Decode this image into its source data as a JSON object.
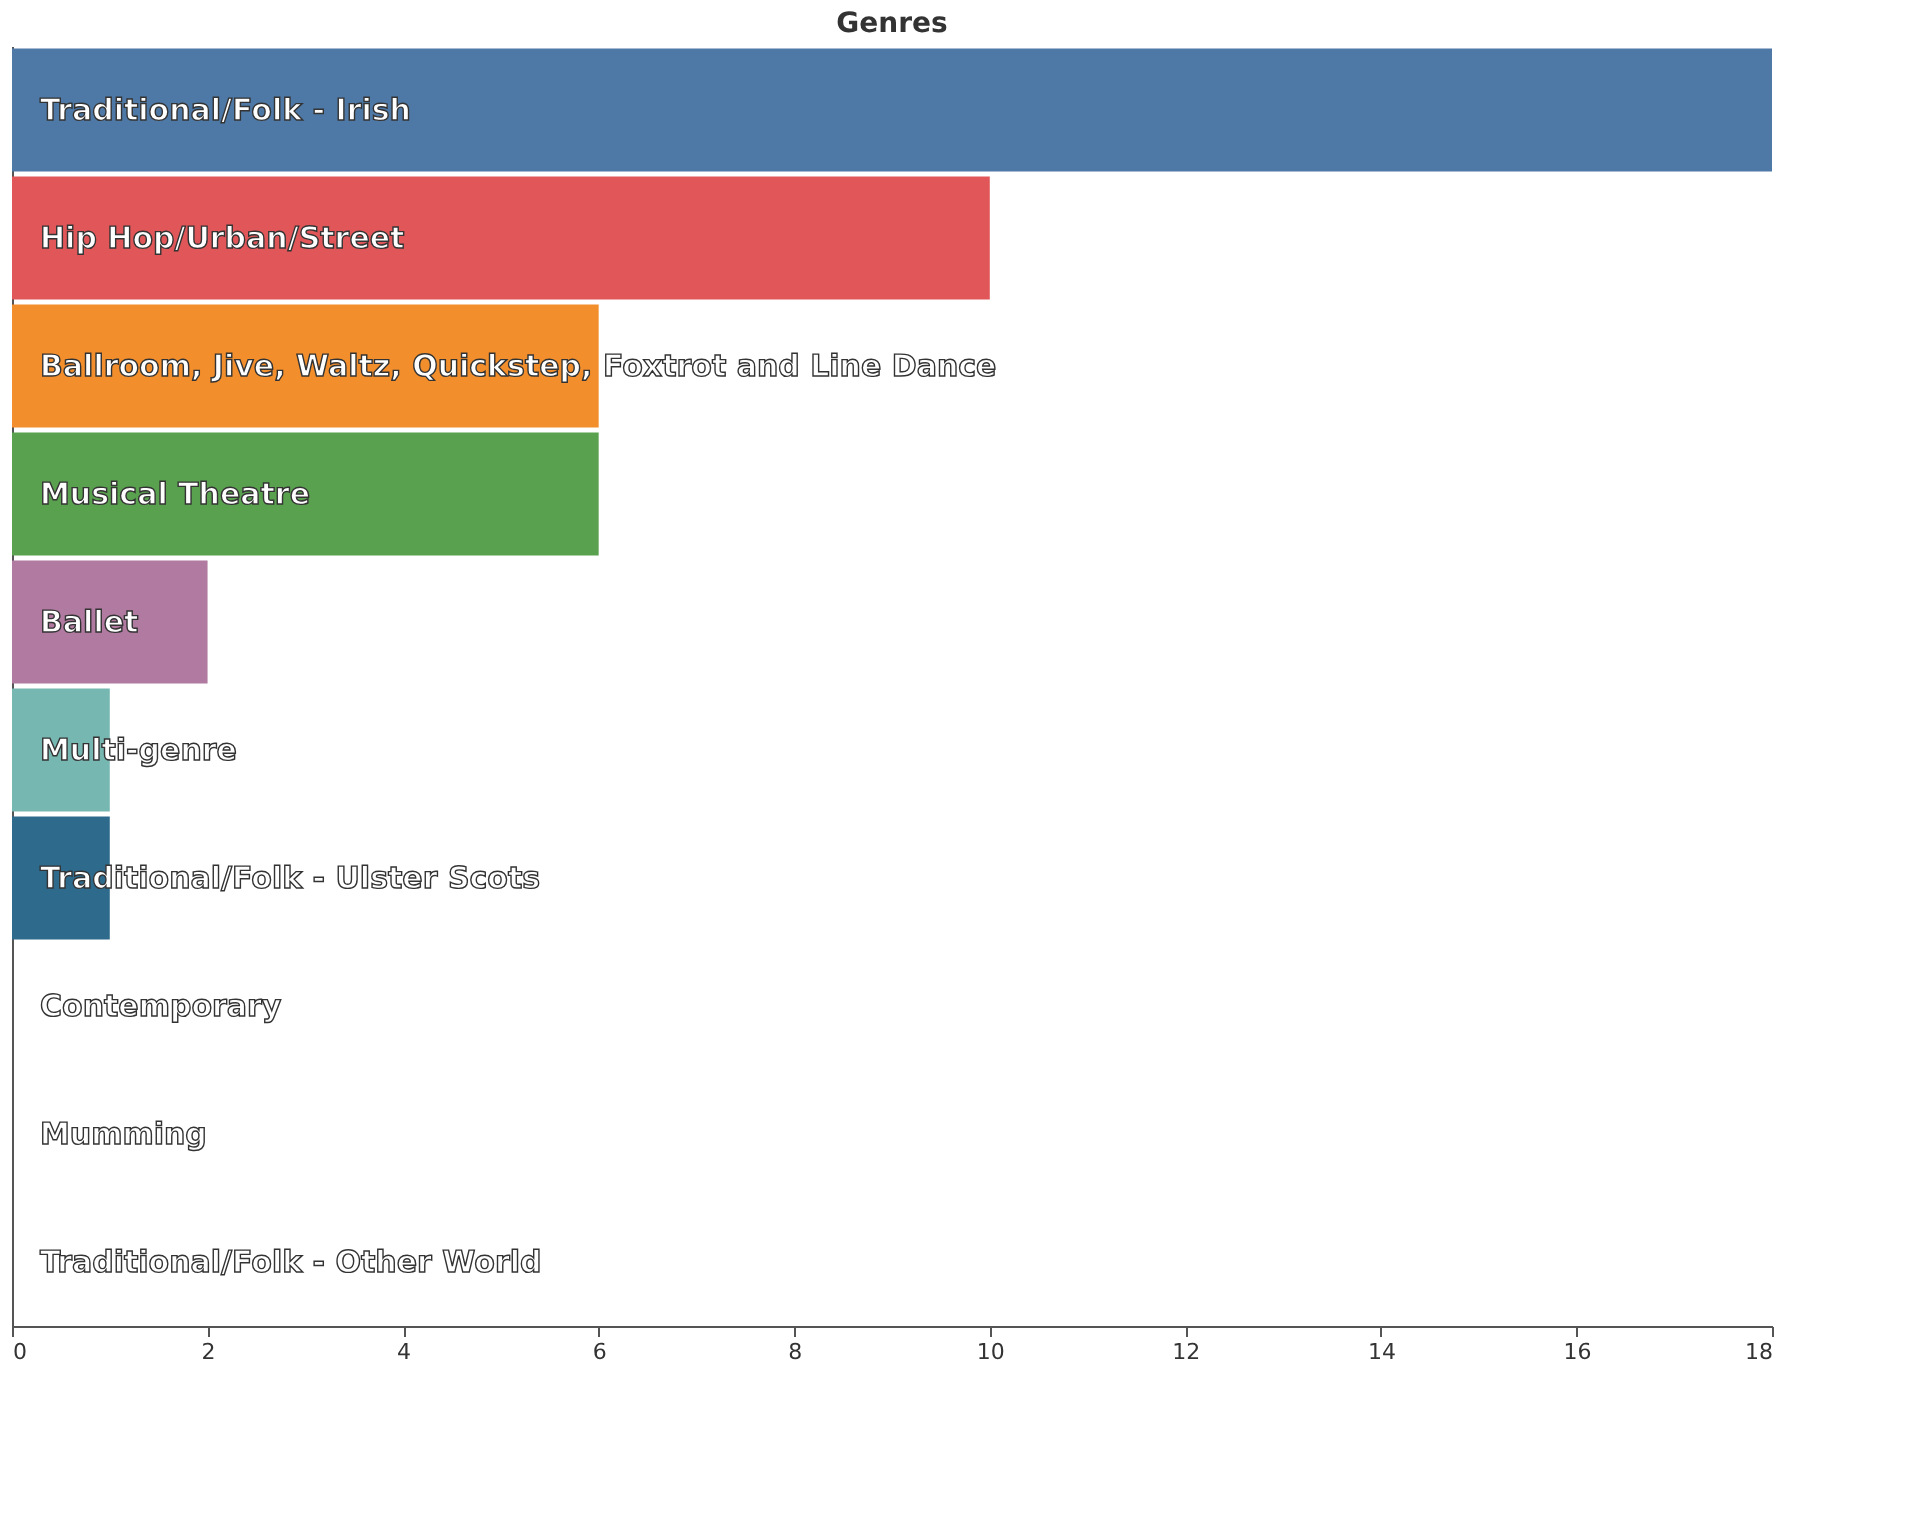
{
  "chart_data": {
    "type": "bar",
    "title": "Genres",
    "orientation": "horizontal",
    "categories": [
      "Traditional/Folk - Irish",
      "Hip Hop/Urban/Street",
      "Ballroom, Jive, Waltz, Quickstep, Foxtrot and Line Dance",
      "Musical Theatre",
      "Ballet",
      "Multi-genre",
      "Traditional/Folk - Ulster Scots",
      "Contemporary",
      "Mumming",
      "Traditional/Folk - Other World"
    ],
    "values": [
      18,
      10,
      6,
      6,
      2,
      1,
      1,
      0,
      0,
      0
    ],
    "colors": [
      "#4e79a7",
      "#e15759",
      "#f28e2b",
      "#59a14f",
      "#b07aa1",
      "#76b7b2",
      "#2e6a8c",
      null,
      null,
      null
    ],
    "xlim": [
      0,
      18
    ],
    "xticks": [
      0,
      2,
      4,
      6,
      8,
      10,
      12,
      14,
      16,
      18
    ],
    "grid": false
  }
}
